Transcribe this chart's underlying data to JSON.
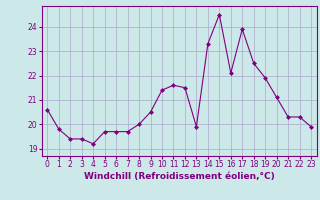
{
  "x": [
    0,
    1,
    2,
    3,
    4,
    5,
    6,
    7,
    8,
    9,
    10,
    11,
    12,
    13,
    14,
    15,
    16,
    17,
    18,
    19,
    20,
    21,
    22,
    23
  ],
  "y": [
    20.6,
    19.8,
    19.4,
    19.4,
    19.2,
    19.7,
    19.7,
    19.7,
    20.0,
    20.5,
    21.4,
    21.6,
    21.5,
    19.9,
    23.3,
    24.5,
    22.1,
    23.9,
    22.5,
    21.9,
    21.1,
    20.3,
    20.3,
    19.9
  ],
  "line_color": "#800080",
  "marker": "D",
  "marker_size": 2,
  "bg_color": "#cce8e8",
  "plot_bg_color": "#cce8e8",
  "grid_color": "#aaaacc",
  "xlabel": "Windchill (Refroidissement éolien,°C)",
  "xlabel_color": "#800080",
  "xlabel_fontsize": 6.5,
  "ylabel_ticks": [
    19,
    20,
    21,
    22,
    23,
    24
  ],
  "xtick_labels": [
    "0",
    "1",
    "2",
    "3",
    "4",
    "5",
    "6",
    "7",
    "8",
    "9",
    "10",
    "11",
    "12",
    "13",
    "14",
    "15",
    "16",
    "17",
    "18",
    "19",
    "20",
    "21",
    "22",
    "23"
  ],
  "ylim": [
    18.7,
    24.85
  ],
  "xlim": [
    -0.5,
    23.5
  ],
  "tick_color": "#800080",
  "tick_fontsize": 5.5,
  "spine_color": "#800080"
}
